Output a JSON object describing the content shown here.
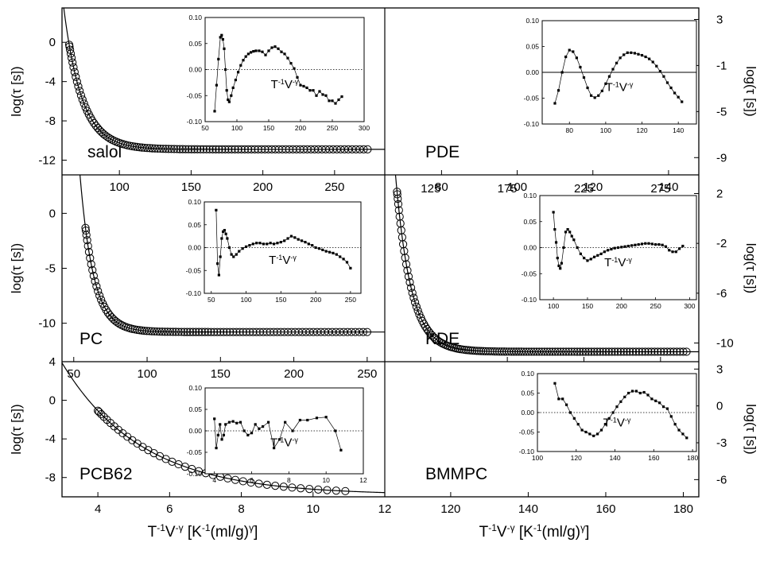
{
  "chart_data": [
    {
      "panel": "salol",
      "type": "scatter",
      "sample_label": "salol",
      "ylabel": "log(τ [s])",
      "ylabel_side": "left",
      "x_tick_labels": [
        "100",
        "150",
        "200",
        "250"
      ],
      "y_tick_labels": [
        "0",
        "-4",
        "-8",
        "-12"
      ],
      "xlim": [
        60,
        285
      ],
      "ylim": [
        -13.5,
        3.5
      ],
      "x_ticks": [
        100,
        150,
        200,
        250
      ],
      "y_ticks": [
        0,
        -4,
        -8,
        -12
      ],
      "fit_line": true,
      "model": {
        "a": -10.9,
        "b": 12.5,
        "c": 63,
        "d": -1,
        "k": 0.08
      },
      "points": {
        "x_start": 65,
        "x_end": 273,
        "count": 112
      },
      "inset": {
        "label_base": "T",
        "label_sup1": "-1",
        "label_mid": "V",
        "label_sup2": "-γ",
        "xlim": [
          50,
          300
        ],
        "ylim": [
          -0.1,
          0.1
        ],
        "x_ticks": [
          50,
          100,
          150,
          200,
          250,
          300
        ],
        "x_tick_labels": [
          "50",
          "100",
          "150",
          "200",
          "250",
          "300"
        ],
        "y_ticks": [
          0.1,
          0.05,
          0,
          -0.05,
          -0.1
        ],
        "y_tick_labels": [
          "0.10",
          "0.05",
          "0.00",
          "-0.05",
          "-0.10"
        ],
        "zero_line": "dotted",
        "residuals": {
          "x": [
            65,
            68,
            71,
            74,
            76,
            78,
            80,
            82,
            84,
            86,
            88,
            91,
            94,
            98,
            102,
            106,
            110,
            114,
            118,
            122,
            126,
            130,
            135,
            140,
            145,
            150,
            155,
            160,
            165,
            170,
            175,
            180,
            185,
            190,
            195,
            200,
            205,
            210,
            215,
            220,
            225,
            230,
            235,
            240,
            245,
            250,
            255,
            260,
            265
          ],
          "y": [
            -0.08,
            -0.03,
            0.02,
            0.062,
            0.066,
            0.058,
            0.04,
            0.0,
            -0.04,
            -0.058,
            -0.062,
            -0.05,
            -0.035,
            -0.02,
            -0.005,
            0.008,
            0.018,
            0.025,
            0.03,
            0.033,
            0.035,
            0.036,
            0.036,
            0.034,
            0.028,
            0.036,
            0.042,
            0.044,
            0.04,
            0.034,
            0.03,
            0.022,
            0.012,
            0.002,
            -0.015,
            -0.03,
            -0.032,
            -0.035,
            -0.04,
            -0.04,
            -0.05,
            -0.042,
            -0.048,
            -0.05,
            -0.06,
            -0.06,
            -0.065,
            -0.058,
            -0.052
          ]
        }
      }
    },
    {
      "panel": "PDE",
      "type": "scatter",
      "sample_label": "PDE",
      "ylabel": "log(τ [s])",
      "ylabel_side": "right",
      "x_tick_labels": [
        "80",
        "100",
        "120",
        "140"
      ],
      "y_tick_labels": [
        "3",
        "-1",
        "-5",
        "-9"
      ],
      "xlim": [
        65,
        148
      ],
      "ylim": [
        -10.5,
        4
      ],
      "x_ticks": [
        80,
        100,
        120,
        140
      ],
      "y_ticks": [
        3,
        -1,
        -5,
        -9
      ],
      "fit_line": true,
      "model": {
        "a": -11.4,
        "b": 13.6,
        "c": 40,
        "d": 14,
        "k": 0.85
      },
      "points": {
        "x_start": 72,
        "x_end": 142,
        "count": 38
      },
      "inset": {
        "label_base": "T",
        "label_sup1": "-1",
        "label_mid": "V",
        "label_sup2": "-γ",
        "xlim": [
          65,
          150
        ],
        "ylim": [
          -0.1,
          0.1
        ],
        "x_ticks": [
          80,
          100,
          120,
          140
        ],
        "x_tick_labels": [
          "80",
          "100",
          "120",
          "140"
        ],
        "y_ticks": [
          0.1,
          0.05,
          0,
          -0.05,
          -0.1
        ],
        "y_tick_labels": [
          "0.10",
          "0.05",
          "0.00",
          "-0.05",
          "-0.10"
        ],
        "zero_line": "solid",
        "residuals": {
          "x": [
            72,
            74,
            76,
            78,
            80,
            82,
            84,
            86,
            88,
            90,
            92,
            94,
            96,
            98,
            100,
            102,
            104,
            106,
            108,
            110,
            112,
            114,
            116,
            118,
            120,
            122,
            124,
            126,
            128,
            130,
            132,
            134,
            136,
            138,
            140,
            142
          ],
          "y": [
            -0.06,
            -0.035,
            0.0,
            0.03,
            0.043,
            0.04,
            0.028,
            0.01,
            -0.01,
            -0.03,
            -0.045,
            -0.049,
            -0.045,
            -0.036,
            -0.022,
            -0.008,
            0.006,
            0.018,
            0.028,
            0.034,
            0.038,
            0.038,
            0.037,
            0.035,
            0.033,
            0.03,
            0.026,
            0.02,
            0.012,
            0.002,
            -0.008,
            -0.02,
            -0.03,
            -0.04,
            -0.048,
            -0.057
          ]
        }
      }
    },
    {
      "panel": "PC",
      "type": "scatter",
      "sample_label": "PC",
      "ylabel": "log(τ [s])",
      "ylabel_side": "left",
      "x_tick_labels": [
        "50",
        "100",
        "150",
        "200",
        "250"
      ],
      "y_tick_labels": [
        "0",
        "-5",
        "-10"
      ],
      "xlim": [
        42,
        262
      ],
      "ylim": [
        -13.5,
        3.5
      ],
      "x_ticks": [
        50,
        100,
        150,
        200,
        250
      ],
      "y_ticks": [
        0,
        -5,
        -10
      ],
      "fit_line": true,
      "model": {
        "a": -10.8,
        "b": 11.8,
        "c": 56,
        "d": -0.5,
        "k": 0.11
      },
      "points": {
        "x_start": 58,
        "x_end": 250,
        "count": 104
      },
      "inset": {
        "label_base": "T",
        "label_sup1": "-1",
        "label_mid": "V",
        "label_sup2": "-γ",
        "xlim": [
          40,
          265
        ],
        "ylim": [
          -0.1,
          0.1
        ],
        "x_ticks": [
          50,
          100,
          150,
          200,
          250
        ],
        "x_tick_labels": [
          "50",
          "100",
          "150",
          "200",
          "250"
        ],
        "y_ticks": [
          0.1,
          0.05,
          0,
          -0.05,
          -0.1
        ],
        "y_tick_labels": [
          "0.10",
          "0.05",
          "0.00",
          "-0.05",
          "-0.10"
        ],
        "zero_line": "dotted",
        "residuals": {
          "x": [
            57,
            59,
            61,
            63,
            65,
            67,
            69,
            71,
            73,
            76,
            79,
            82,
            86,
            90,
            95,
            100,
            105,
            110,
            115,
            120,
            125,
            130,
            135,
            140,
            145,
            150,
            155,
            160,
            165,
            170,
            175,
            180,
            185,
            190,
            195,
            200,
            205,
            210,
            215,
            220,
            225,
            230,
            235,
            240,
            245,
            250
          ],
          "y": [
            0.082,
            -0.035,
            -0.06,
            -0.02,
            0.02,
            0.035,
            0.038,
            0.03,
            0.02,
            0.0,
            -0.015,
            -0.02,
            -0.015,
            -0.008,
            -0.002,
            0.002,
            0.005,
            0.008,
            0.01,
            0.01,
            0.008,
            0.008,
            0.01,
            0.008,
            0.01,
            0.012,
            0.015,
            0.02,
            0.025,
            0.022,
            0.018,
            0.015,
            0.012,
            0.008,
            0.005,
            0.0,
            -0.002,
            -0.005,
            -0.008,
            -0.01,
            -0.012,
            -0.015,
            -0.02,
            -0.025,
            -0.032,
            -0.045
          ]
        }
      }
    },
    {
      "panel": "KDE",
      "type": "scatter",
      "sample_label": "KDE",
      "ylabel": "log(τ [s])",
      "ylabel_side": "right",
      "x_tick_labels": [
        "125",
        "175",
        "225",
        "275"
      ],
      "y_tick_labels": [
        "2",
        "-2",
        "-6",
        "-10"
      ],
      "xlim": [
        95,
        300
      ],
      "ylim": [
        -11.5,
        3.5
      ],
      "x_ticks": [
        125,
        175,
        225,
        275
      ],
      "y_ticks": [
        2,
        -2,
        -6,
        -10
      ],
      "fit_line": true,
      "model": {
        "a": -10.7,
        "b": 14.2,
        "c": 102,
        "d": 0,
        "k": 0.1
      },
      "points": {
        "x_start": 103,
        "x_end": 292,
        "count": 130
      },
      "inset": {
        "label_base": "T",
        "label_sup1": "-1",
        "label_mid": "V",
        "label_sup2": "-γ",
        "xlim": [
          80,
          310
        ],
        "ylim": [
          -0.1,
          0.1
        ],
        "x_ticks": [
          100,
          150,
          200,
          250,
          300
        ],
        "x_tick_labels": [
          "100",
          "150",
          "200",
          "250",
          "300"
        ],
        "y_ticks": [
          0.1,
          0.05,
          0,
          -0.05,
          -0.1
        ],
        "y_tick_labels": [
          "0.10",
          "0.05",
          "0.00",
          "-0.05",
          "-0.10"
        ],
        "zero_line": "dotted",
        "residuals": {
          "x": [
            100,
            102,
            104,
            106,
            108,
            110,
            112,
            115,
            118,
            121,
            124,
            127,
            130,
            135,
            140,
            145,
            150,
            155,
            160,
            165,
            170,
            175,
            180,
            185,
            190,
            195,
            200,
            205,
            210,
            215,
            220,
            225,
            230,
            235,
            240,
            245,
            250,
            255,
            260,
            265,
            270,
            275,
            280,
            285,
            290
          ],
          "y": [
            0.068,
            0.035,
            0.01,
            -0.02,
            -0.035,
            -0.04,
            -0.03,
            0.0,
            0.03,
            0.035,
            0.03,
            0.022,
            0.015,
            0.0,
            -0.012,
            -0.02,
            -0.025,
            -0.022,
            -0.018,
            -0.015,
            -0.012,
            -0.008,
            -0.005,
            -0.003,
            -0.001,
            0.0,
            0.001,
            0.002,
            0.003,
            0.004,
            0.005,
            0.006,
            0.007,
            0.008,
            0.008,
            0.007,
            0.006,
            0.006,
            0.005,
            0.002,
            -0.005,
            -0.008,
            -0.008,
            -0.002,
            0.003
          ]
        }
      }
    },
    {
      "panel": "PCB62",
      "type": "scatter",
      "sample_label": "PCB62",
      "ylabel": "log(τ [s])",
      "ylabel_side": "left",
      "xlabel_base": "T",
      "xlabel_sup1": "-1",
      "xlabel_mid": "V",
      "xlabel_sup2": "-γ",
      "xlabel_units": "[K",
      "xlabel_units_sup": "-1",
      "xlabel_units_rest": "(ml/g)",
      "xlabel_units_sup2": "γ",
      "xlabel_units_end": "]",
      "x_tick_labels": [
        "4",
        "6",
        "8",
        "10",
        "12"
      ],
      "y_tick_labels": [
        "4",
        "0",
        "-4",
        "-8"
      ],
      "xlim": [
        3,
        12
      ],
      "ylim": [
        -10,
        4
      ],
      "x_ticks": [
        4,
        6,
        8,
        10,
        12
      ],
      "y_ticks": [
        4,
        0,
        -4,
        -8
      ],
      "fit_line": true,
      "model": {
        "a": -9.8,
        "b": 12.5,
        "c": 3.2,
        "d": 0.2,
        "k": 0.45
      },
      "points": {
        "x_start": 4,
        "x_end": 10.9,
        "count": 40
      },
      "inset": {
        "label_base": "T",
        "label_sup1": "-1",
        "label_mid": "V",
        "label_sup2": "-γ",
        "xlim": [
          3.5,
          12
        ],
        "ylim": [
          -0.1,
          0.1
        ],
        "x_ticks": [
          4,
          6,
          8,
          10,
          12
        ],
        "x_tick_labels": [
          "4",
          "6",
          "8",
          "10",
          "12"
        ],
        "y_ticks": [
          0.1,
          0.05,
          0,
          -0.05,
          -0.1
        ],
        "y_tick_labels": [
          "0.10",
          "0.05",
          "0.00",
          "-0.05",
          "-0.10"
        ],
        "zero_line": "dotted",
        "residuals": {
          "x": [
            4.0,
            4.1,
            4.2,
            4.3,
            4.4,
            4.5,
            4.6,
            4.8,
            5.0,
            5.2,
            5.4,
            5.6,
            5.8,
            6.0,
            6.2,
            6.4,
            6.6,
            6.9,
            7.2,
            7.5,
            7.8,
            8.2,
            8.6,
            9.0,
            9.5,
            10.0,
            10.5,
            10.8
          ],
          "y": [
            0.028,
            -0.04,
            -0.01,
            0.015,
            -0.02,
            -0.01,
            0.015,
            0.02,
            0.022,
            0.018,
            0.02,
            0.0,
            -0.01,
            -0.005,
            0.015,
            0.005,
            0.01,
            0.02,
            -0.04,
            -0.02,
            0.02,
            0.0,
            0.025,
            0.025,
            0.03,
            0.032,
            0.0,
            -0.045
          ]
        }
      }
    },
    {
      "panel": "BMMPC",
      "type": "scatter",
      "sample_label": "BMMPC",
      "ylabel": "log(τ [s])",
      "ylabel_side": "right",
      "xlabel_base": "T",
      "xlabel_sup1": "-1",
      "xlabel_mid": "V",
      "xlabel_sup2": "-γ",
      "xlabel_units": "[K",
      "xlabel_units_sup": "-1",
      "xlabel_units_rest": "(ml/g)",
      "xlabel_units_sup2": "γ",
      "xlabel_units_end": "]",
      "x_tick_labels": [
        "120",
        "140",
        "160",
        "180"
      ],
      "y_tick_labels": [
        "3",
        "0",
        "-3",
        "-6"
      ],
      "xlim": [
        103,
        184
      ],
      "ylim": [
        -7.4,
        3.6
      ],
      "x_ticks": [
        120,
        140,
        160,
        180
      ],
      "y_ticks": [
        3,
        0,
        -3,
        -6
      ],
      "fit_line": true,
      "model": {
        "a": -11.5,
        "b": 14.3,
        "c": 85,
        "d": 25,
        "k": 1.0
      },
      "points": {
        "x_start": 109,
        "x_end": 177,
        "count": 27
      },
      "inset": {
        "label_base": "T",
        "label_sup1": "-1",
        "label_mid": "V",
        "label_sup2": "-γ",
        "xlim": [
          100,
          182
        ],
        "ylim": [
          -0.1,
          0.1
        ],
        "x_ticks": [
          100,
          120,
          140,
          160,
          180
        ],
        "x_tick_labels": [
          "100",
          "120",
          "140",
          "160",
          "180"
        ],
        "y_ticks": [
          0.1,
          0.05,
          0,
          -0.05,
          -0.1
        ],
        "y_tick_labels": [
          "0.10",
          "0.05",
          "0.00",
          "-0.05",
          "-0.10"
        ],
        "zero_line": "dotted",
        "residuals": {
          "x": [
            109,
            111,
            113,
            115,
            117,
            119,
            121,
            123,
            125,
            127,
            129,
            131,
            133,
            135,
            137,
            139,
            141,
            143,
            145,
            147,
            149,
            151,
            153,
            155,
            157,
            159,
            161,
            163,
            165,
            167,
            169,
            171,
            173,
            175,
            177
          ],
          "y": [
            0.075,
            0.035,
            0.035,
            0.02,
            0.0,
            -0.015,
            -0.03,
            -0.045,
            -0.05,
            -0.055,
            -0.06,
            -0.055,
            -0.045,
            -0.03,
            -0.015,
            0.0,
            0.015,
            0.028,
            0.04,
            0.05,
            0.055,
            0.055,
            0.05,
            0.052,
            0.045,
            0.035,
            0.03,
            0.025,
            0.015,
            0.01,
            -0.01,
            -0.03,
            -0.045,
            -0.055,
            -0.065
          ]
        }
      }
    }
  ]
}
